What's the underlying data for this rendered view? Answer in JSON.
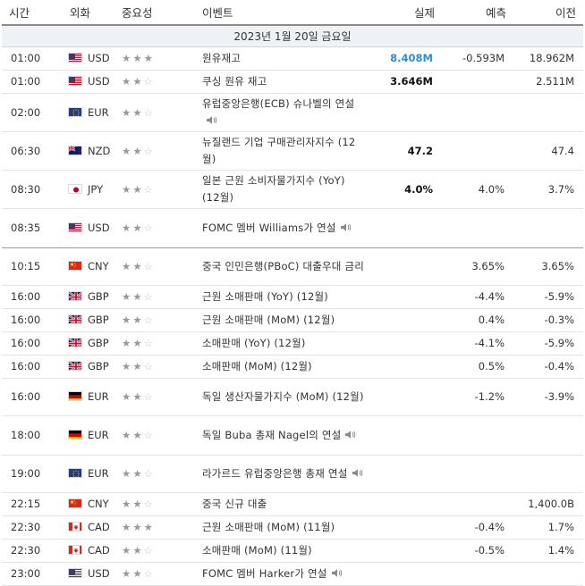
{
  "headers": {
    "time": "시간",
    "currency": "외화",
    "importance": "중요성",
    "event": "이벤트",
    "actual": "실제",
    "forecast": "예측",
    "previous": "이전"
  },
  "date_label": "2023년 1월 20일 금요일",
  "colors": {
    "actual_blue": "#2a8fd6",
    "star_full": "#9a9a9a",
    "star_empty": "#c2c2c2",
    "date_row_bg": "#eef1f5"
  },
  "events": [
    {
      "time": "01:00",
      "flag": "us",
      "currency": "USD",
      "stars": 3,
      "event": "원유재고",
      "speech": false,
      "actual": "8.408M",
      "actual_style": "blue",
      "forecast": "-0.593M",
      "previous": "18.962M",
      "h": 26
    },
    {
      "time": "01:00",
      "flag": "us",
      "currency": "USD",
      "stars": 2,
      "event": "쿠싱 원유 재고",
      "speech": false,
      "actual": "3.646M",
      "actual_style": "black",
      "forecast": "",
      "previous": "2.511M",
      "h": 26
    },
    {
      "time": "02:00",
      "flag": "eu",
      "currency": "EUR",
      "stars": 2,
      "event": "유럽중앙은행(ECB) 슈나벨의 연설",
      "speech": true,
      "actual": "",
      "actual_style": "",
      "forecast": "",
      "previous": "",
      "h": 42
    },
    {
      "time": "06:30",
      "flag": "nz",
      "currency": "NZD",
      "stars": 2,
      "event": "뉴질랜드 기업 구매관리자지수 (12월)",
      "speech": false,
      "actual": "47.2",
      "actual_style": "black",
      "forecast": "",
      "previous": "47.4",
      "h": 43
    },
    {
      "time": "08:30",
      "flag": "jp",
      "currency": "JPY",
      "stars": 2,
      "event": "일본 근원 소비자물가지수 (YoY) (12월)",
      "speech": false,
      "actual": "4.0%",
      "actual_style": "black",
      "forecast": "4.0%",
      "previous": "3.7%",
      "h": 43
    },
    {
      "time": "08:35",
      "flag": "us",
      "currency": "USD",
      "stars": 2,
      "event": "FOMC 멤버 Williams가 연설",
      "speech": true,
      "actual": "",
      "actual_style": "",
      "forecast": "",
      "previous": "",
      "h": 44,
      "sep": true
    },
    {
      "time": "10:15",
      "flag": "cn",
      "currency": "CNY",
      "stars": 2,
      "event": "중국 인민은행(PBoC) 대출우대 금리",
      "speech": false,
      "actual": "",
      "actual_style": "",
      "forecast": "3.65%",
      "previous": "3.65%",
      "h": 42
    },
    {
      "time": "16:00",
      "flag": "gb",
      "currency": "GBP",
      "stars": 2,
      "event": "근원 소매판매 (YoY) (12월)",
      "speech": false,
      "actual": "",
      "actual_style": "",
      "forecast": "-4.4%",
      "previous": "-5.9%",
      "h": 26
    },
    {
      "time": "16:00",
      "flag": "gb",
      "currency": "GBP",
      "stars": 2,
      "event": "근원 소매판매 (MoM) (12월)",
      "speech": false,
      "actual": "",
      "actual_style": "",
      "forecast": "0.4%",
      "previous": "-0.3%",
      "h": 26
    },
    {
      "time": "16:00",
      "flag": "gb",
      "currency": "GBP",
      "stars": 2,
      "event": "소매판매 (YoY) (12월)",
      "speech": false,
      "actual": "",
      "actual_style": "",
      "forecast": "-4.1%",
      "previous": "-5.9%",
      "h": 26
    },
    {
      "time": "16:00",
      "flag": "gb",
      "currency": "GBP",
      "stars": 2,
      "event": "소매판매 (MoM) (12월)",
      "speech": false,
      "actual": "",
      "actual_style": "",
      "forecast": "0.5%",
      "previous": "-0.4%",
      "h": 26
    },
    {
      "time": "16:00",
      "flag": "de",
      "currency": "EUR",
      "stars": 2,
      "event": "독일 생산자물가지수 (MoM) (12월)",
      "speech": false,
      "actual": "",
      "actual_style": "",
      "forecast": "-1.2%",
      "previous": "-3.9%",
      "h": 42
    },
    {
      "time": "18:00",
      "flag": "de",
      "currency": "EUR",
      "stars": 2,
      "event": "독일 Buba 총재 Nagel의 연설",
      "speech": true,
      "actual": "",
      "actual_style": "",
      "forecast": "",
      "previous": "",
      "h": 44
    },
    {
      "time": "19:00",
      "flag": "eu",
      "currency": "EUR",
      "stars": 2,
      "event": "라가르드 유럽중앙은행 총재 연설",
      "speech": true,
      "actual": "",
      "actual_style": "",
      "forecast": "",
      "previous": "",
      "h": 42
    },
    {
      "time": "22:15",
      "flag": "cn",
      "currency": "CNY",
      "stars": 2,
      "event": "중국 신규 대출",
      "speech": false,
      "actual": "",
      "actual_style": "",
      "forecast": "",
      "previous": "1,400.0B",
      "h": 26
    },
    {
      "time": "22:30",
      "flag": "ca",
      "currency": "CAD",
      "stars": 3,
      "event": "근원 소매판매 (MoM) (11월)",
      "speech": false,
      "actual": "",
      "actual_style": "",
      "forecast": "-0.4%",
      "previous": "1.7%",
      "h": 26
    },
    {
      "time": "22:30",
      "flag": "ca",
      "currency": "CAD",
      "stars": 2,
      "event": "소매판매 (MoM) (11월)",
      "speech": false,
      "actual": "",
      "actual_style": "",
      "forecast": "-0.5%",
      "previous": "1.4%",
      "h": 26
    },
    {
      "time": "23:00",
      "flag": "us",
      "currency": "USD",
      "stars": 2,
      "event": "FOMC 멤버 Harker가 연설",
      "speech": true,
      "actual": "",
      "actual_style": "",
      "forecast": "",
      "previous": "",
      "h": 26
    }
  ]
}
